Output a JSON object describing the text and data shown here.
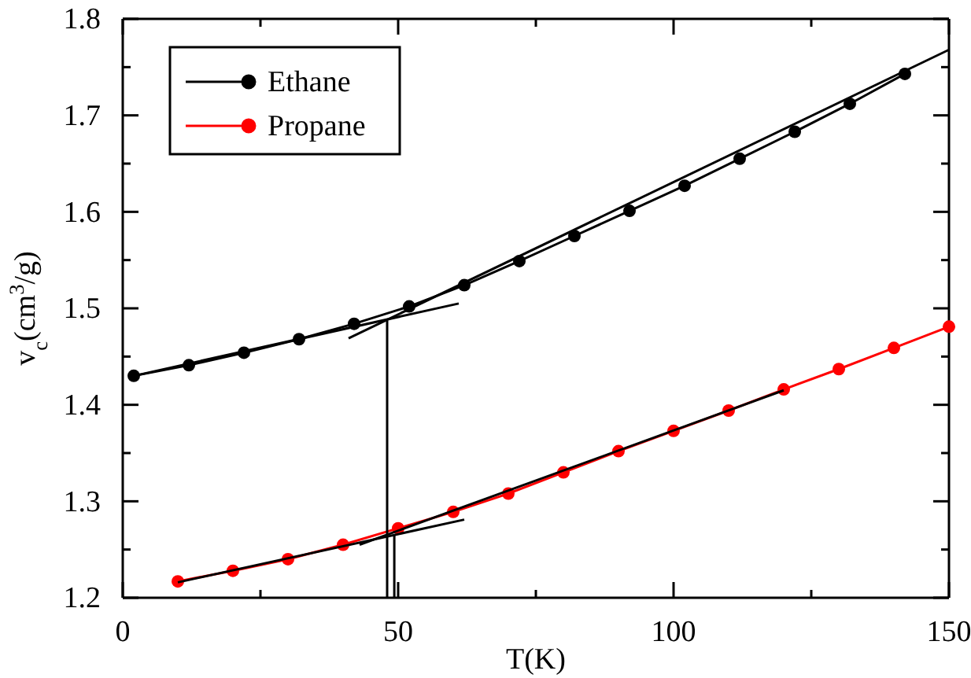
{
  "chart_data": {
    "type": "line",
    "xlabel": "T(K)",
    "ylabel": "v$_{c}$(cm$^{3}$/g)",
    "xlim": [
      0,
      150
    ],
    "ylim": [
      1.2,
      1.8
    ],
    "xticks": [
      0,
      {
        "value": 25,
        "label": null
      },
      50,
      {
        "value": 75,
        "label": null
      },
      100,
      {
        "value": 125,
        "label": null
      },
      150
    ],
    "yticks": [
      1.2,
      {
        "value": 1.25,
        "label": null
      },
      1.3,
      {
        "value": 1.35,
        "label": null
      },
      1.4,
      {
        "value": 1.45,
        "label": null
      },
      1.5,
      {
        "value": 1.55,
        "label": null
      },
      1.6,
      {
        "value": 1.65,
        "label": null
      },
      1.7,
      {
        "value": 1.75,
        "label": null
      },
      1.8
    ],
    "marker": "circle",
    "legend": "top left",
    "grid": false,
    "series": [
      {
        "name": "Ethane",
        "color": "#000000",
        "x": [
          2,
          12,
          22,
          32,
          42,
          52,
          62,
          72,
          82,
          92,
          102,
          112,
          122,
          132,
          142
        ],
        "values": [
          1.43,
          1.441,
          1.454,
          1.468,
          1.484,
          1.502,
          1.524,
          1.549,
          1.575,
          1.601,
          1.627,
          1.655,
          1.683,
          1.712,
          1.743
        ]
      },
      {
        "name": "Propane",
        "color": "#ff0000",
        "x": [
          10,
          20,
          30,
          40,
          50,
          60,
          70,
          80,
          90,
          100,
          110,
          120,
          130,
          140,
          150
        ],
        "values": [
          1.217,
          1.228,
          1.24,
          1.255,
          1.272,
          1.289,
          1.308,
          1.33,
          1.352,
          1.373,
          1.394,
          1.416,
          1.437,
          1.459,
          1.481
        ]
      },
      {
        "color": "#000000",
        "marker": "none",
        "x": [
          2,
          61
        ],
        "values": [
          1.43,
          1.505
        ]
      },
      {
        "color": "#000000",
        "marker": "none",
        "x": [
          41,
          150
        ],
        "values": [
          1.469,
          1.768
        ]
      },
      {
        "color": "#000000",
        "marker": "none",
        "x": [
          10,
          62
        ],
        "values": [
          1.216,
          1.281
        ]
      },
      {
        "color": "#000000",
        "marker": "none",
        "x": [
          43,
          120
        ],
        "values": [
          1.255,
          1.415
        ]
      },
      {
        "color": "#000000",
        "marker": "none",
        "x": [
          48,
          48
        ],
        "values": [
          1.487,
          1.2
        ]
      },
      {
        "color": "#000000",
        "marker": "none",
        "x": [
          49.3,
          49.3
        ],
        "values": [
          1.265,
          1.2
        ]
      }
    ]
  }
}
